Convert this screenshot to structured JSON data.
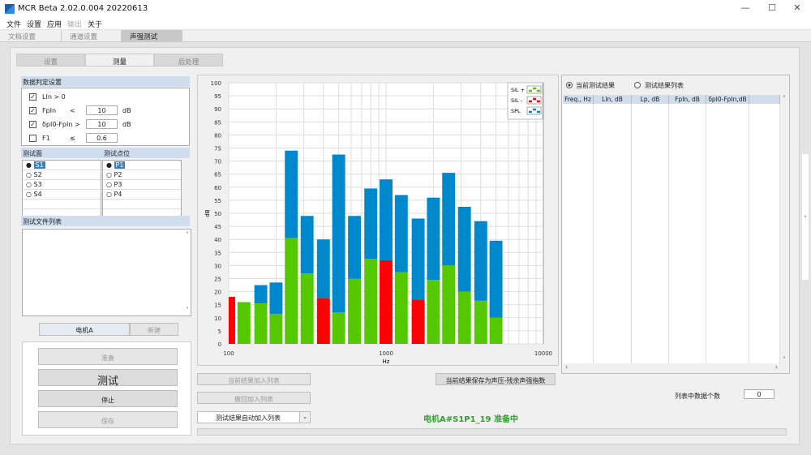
{
  "window": {
    "title": "MCR Beta 2.02.0.004 20220613",
    "minimize": "—",
    "maximize": "☐",
    "close": "✕"
  },
  "menu": [
    "文件",
    "设置",
    "应用",
    "输出",
    "关于"
  ],
  "tabs": [
    "文档设置",
    "通道设置",
    "声强测试"
  ],
  "subtabs": [
    "设置",
    "测量",
    "后处理"
  ],
  "criteria": {
    "header": "数据判定设置",
    "rows": [
      {
        "checked": true,
        "label": "LIn > 0",
        "op": "",
        "value": "",
        "unit": ""
      },
      {
        "checked": true,
        "label": "FpIn",
        "op": "<",
        "value": "10",
        "unit": "dB"
      },
      {
        "checked": true,
        "label": "δpI0-FpIn >",
        "op": "",
        "value": "10",
        "unit": "dB"
      },
      {
        "checked": false,
        "label": "F1",
        "op": "≤",
        "value": "0.6",
        "unit": ""
      }
    ]
  },
  "surfaces": {
    "header": "测试面",
    "items": [
      "S1",
      "S2",
      "S3",
      "S4"
    ],
    "selected": "S1"
  },
  "points": {
    "header": "测试点位",
    "items": [
      "P1",
      "P2",
      "P3",
      "P4"
    ],
    "selected": "P1"
  },
  "filelist": {
    "header": "测试文件列表"
  },
  "device": {
    "current": "电机A",
    "new": "新建"
  },
  "actions": {
    "prepare": "准备",
    "test": "测试",
    "stop": "停止",
    "save": "保存"
  },
  "mid": {
    "add": "当前结果加入列表",
    "undo": "撤回加入列表",
    "auto": "测试结果自动加入列表",
    "save_index": "当前结果保存为声压-残余声强指数",
    "status": "电机A#S1P1_19 准备中"
  },
  "right": {
    "radio_current": "当前测试结果",
    "radio_list": "测试结果列表",
    "columns": [
      "Freq., Hz",
      "LIn, dB",
      "Lp, dB",
      "FpIn, dB",
      "δpI0-FpIn,dB"
    ],
    "count_label": "列表中数据个数",
    "count": "0"
  },
  "colors": {
    "sil_plus": "#55c800",
    "sil_minus": "#ff0000",
    "spl": "#0088cc",
    "status": "#2aa52a"
  },
  "chart_data": {
    "type": "bar",
    "xscale": "log",
    "xlim": [
      100,
      10000
    ],
    "ylim": [
      0,
      100
    ],
    "xlabel": "Hz",
    "ylabel": "dB",
    "grid": true,
    "legend": "top-right",
    "xticks": [
      "100",
      "1000",
      "10000"
    ],
    "yticks": [
      0,
      5,
      10,
      15,
      20,
      25,
      30,
      35,
      40,
      45,
      50,
      55,
      60,
      65,
      70,
      75,
      80,
      85,
      90,
      95,
      100
    ],
    "legend_entries": [
      "SIL +",
      "SIL -",
      "SPL"
    ],
    "x": [
      100,
      125,
      160,
      200,
      250,
      315,
      400,
      500,
      630,
      800,
      1000,
      1250,
      1600,
      2000,
      2500,
      3150,
      4000,
      5000
    ],
    "series": [
      {
        "name": "SIL",
        "values": [
          18,
          16,
          15.5,
          11.5,
          40.5,
          27,
          17.5,
          12,
          25,
          32.5,
          32,
          27.5,
          17,
          24.5,
          30,
          20,
          16.5,
          10
        ],
        "sign": [
          "-",
          "+",
          "+",
          "+",
          "+",
          "+",
          "-",
          "+",
          "+",
          "+",
          "-",
          "+",
          "-",
          "+",
          "+",
          "+",
          "+",
          "+"
        ]
      },
      {
        "name": "SPL",
        "values": [
          18,
          16,
          22.5,
          23.5,
          74,
          49,
          40,
          72.5,
          49,
          59.5,
          63,
          57,
          48,
          56,
          65.5,
          52.5,
          47,
          39.5
        ]
      }
    ]
  }
}
